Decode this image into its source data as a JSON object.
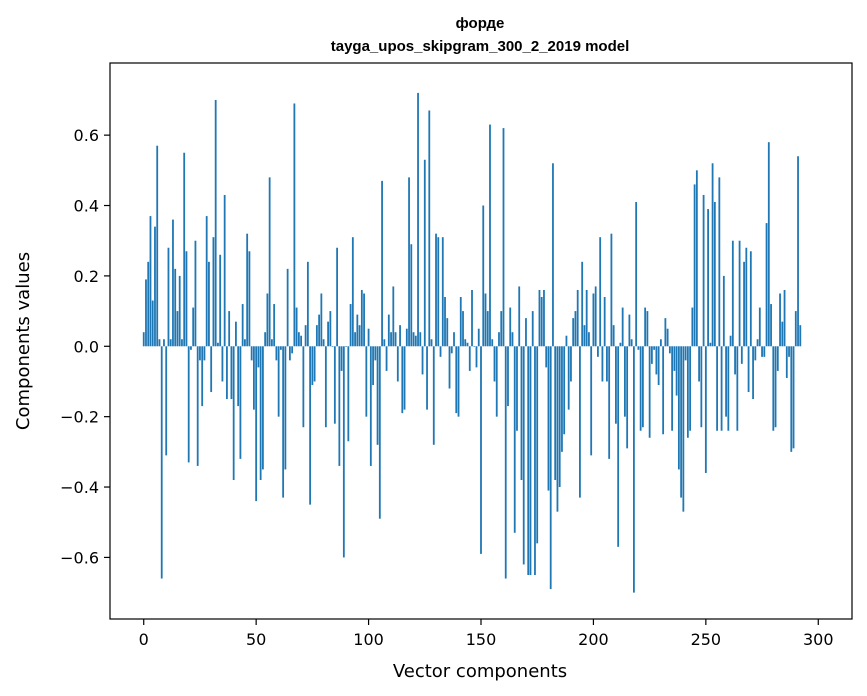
{
  "chart_data": {
    "type": "bar",
    "title": "форде",
    "subtitle": "tayga_upos_skipgram_300_2_2019 model",
    "xlabel": "Vector components",
    "ylabel": "Components values",
    "xlim": [
      -15,
      315
    ],
    "ylim": [
      -0.775,
      0.805
    ],
    "xticks": [
      0,
      50,
      100,
      150,
      200,
      250,
      300
    ],
    "yticks": [
      -0.6,
      -0.4,
      -0.2,
      0.0,
      0.2,
      0.4,
      0.6
    ],
    "ytick_labels": [
      "−0.6",
      "−0.4",
      "−0.2",
      "0.0",
      "0.2",
      "0.4",
      "0.6"
    ],
    "bar_color": "#1f77b4",
    "values": [
      0.04,
      0.19,
      0.24,
      0.37,
      0.13,
      0.34,
      0.57,
      0.02,
      -0.66,
      0.02,
      -0.31,
      0.28,
      0.02,
      0.36,
      0.22,
      0.1,
      0.2,
      0.02,
      0.55,
      0.27,
      -0.33,
      -0.01,
      0.11,
      0.3,
      -0.34,
      -0.04,
      -0.17,
      -0.04,
      0.37,
      0.24,
      -0.13,
      0.31,
      0.7,
      0.01,
      0.26,
      -0.1,
      0.43,
      -0.15,
      0.1,
      -0.15,
      -0.38,
      0.07,
      -0.17,
      -0.32,
      0.12,
      0.02,
      0.32,
      0.27,
      -0.04,
      -0.18,
      -0.44,
      -0.06,
      -0.38,
      -0.35,
      0.04,
      0.15,
      0.48,
      0.02,
      0.12,
      -0.04,
      -0.2,
      -0.01,
      -0.43,
      -0.35,
      0.22,
      -0.04,
      -0.02,
      0.69,
      0.11,
      0.04,
      0.03,
      -0.23,
      0.06,
      0.24,
      -0.45,
      -0.11,
      -0.1,
      0.06,
      0.09,
      0.15,
      0.02,
      -0.23,
      0.07,
      0.1,
      0.0,
      -0.22,
      0.28,
      -0.34,
      -0.07,
      -0.6,
      0.0,
      -0.27,
      0.12,
      0.31,
      0.04,
      0.09,
      0.06,
      0.16,
      0.15,
      -0.2,
      0.05,
      -0.34,
      -0.11,
      -0.04,
      -0.28,
      -0.49,
      0.47,
      0.02,
      -0.07,
      0.09,
      0.04,
      0.17,
      0.04,
      -0.1,
      0.06,
      -0.19,
      -0.18,
      0.05,
      0.48,
      0.29,
      0.04,
      0.03,
      0.72,
      0.04,
      -0.08,
      0.53,
      -0.18,
      0.67,
      0.02,
      -0.28,
      0.32,
      0.31,
      -0.03,
      0.31,
      0.14,
      0.08,
      -0.12,
      -0.02,
      0.04,
      -0.19,
      -0.2,
      0.14,
      0.1,
      0.02,
      0.01,
      -0.07,
      0.16,
      0.0,
      -0.06,
      0.05,
      -0.59,
      0.4,
      0.15,
      0.1,
      0.63,
      0.02,
      -0.1,
      -0.2,
      0.04,
      0.1,
      0.62,
      -0.66,
      -0.17,
      0.11,
      0.04,
      -0.53,
      -0.24,
      0.17,
      -0.38,
      -0.62,
      0.08,
      -0.65,
      -0.65,
      0.1,
      -0.65,
      -0.56,
      0.16,
      0.14,
      0.16,
      -0.06,
      -0.41,
      -0.69,
      0.52,
      -0.38,
      -0.47,
      -0.4,
      -0.3,
      -0.25,
      0.03,
      -0.18,
      -0.1,
      0.08,
      0.1,
      0.16,
      -0.43,
      0.24,
      0.06,
      0.16,
      0.04,
      -0.31,
      0.15,
      0.17,
      -0.03,
      0.31,
      -0.1,
      0.14,
      -0.1,
      -0.32,
      0.32,
      0.06,
      -0.22,
      -0.57,
      0.01,
      0.11,
      -0.2,
      -0.29,
      0.09,
      0.02,
      -0.7,
      0.41,
      -0.01,
      -0.24,
      -0.23,
      0.11,
      0.1,
      -0.26,
      -0.05,
      -0.01,
      -0.08,
      -0.11,
      0.02,
      -0.25,
      0.08,
      0.05,
      -0.02,
      -0.24,
      -0.07,
      -0.14,
      -0.35,
      -0.43,
      -0.47,
      -0.04,
      -0.26,
      -0.24,
      0.11,
      0.46,
      0.5,
      -0.1,
      -0.23,
      0.43,
      -0.36,
      0.39,
      0.01,
      0.52,
      0.41,
      -0.24,
      0.48,
      -0.24,
      0.2,
      -0.2,
      -0.24,
      0.03,
      0.3,
      -0.08,
      -0.24,
      0.3,
      -0.05,
      0.24,
      0.28,
      -0.13,
      0.27,
      -0.15,
      -0.04,
      0.02,
      0.11,
      -0.03,
      -0.03,
      0.35,
      0.58,
      0.12,
      -0.24,
      -0.23,
      -0.07,
      0.15,
      0.07,
      0.16,
      -0.09,
      -0.03,
      -0.3,
      -0.29,
      0.1,
      0.54,
      0.06
    ]
  }
}
